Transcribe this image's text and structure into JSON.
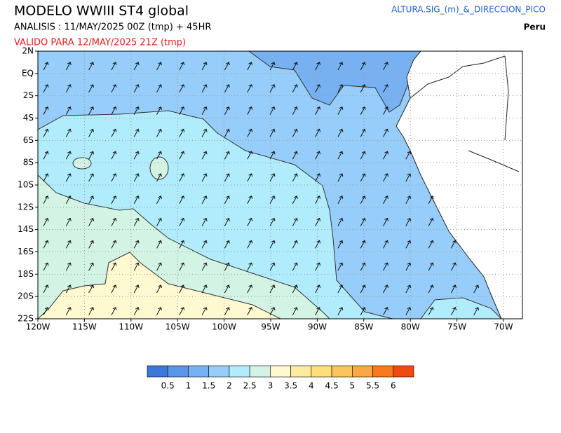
{
  "header": {
    "title": "MODELO  WWIII ST4 global",
    "analysis": "ANALISIS : 11/MAY/2025 00Z  (tmp) + 45HR",
    "valid": "VALIDO PARA  12/MAY/2025 21Z  (tmp)",
    "variable": "ALTURA.SIG_(m)_&_DIRECCION_PICO",
    "region": "Peru"
  },
  "map": {
    "lon_labels": [
      "120W",
      "115W",
      "110W",
      "105W",
      "100W",
      "95W",
      "90W",
      "85W",
      "80W",
      "75W",
      "70W"
    ],
    "lat_labels": [
      "2N",
      "EQ",
      "2S",
      "4S",
      "6S",
      "8S",
      "10S",
      "12S",
      "14S",
      "16S",
      "18S",
      "20S",
      "22S"
    ]
  },
  "colorbar": {
    "labels": [
      0.5,
      1,
      1.5,
      2,
      2.5,
      3,
      3.5,
      4,
      4.5,
      5,
      5.5,
      6
    ],
    "colors": [
      "#3a78d9",
      "#5a95e6",
      "#78b1f2",
      "#96cdfa",
      "#b0ecfc",
      "#d3f3e5",
      "#fef9d0",
      "#fdeba0",
      "#fde07a",
      "#fbc55e",
      "#f8a844",
      "#f77a1e",
      "#f04a10"
    ]
  }
}
